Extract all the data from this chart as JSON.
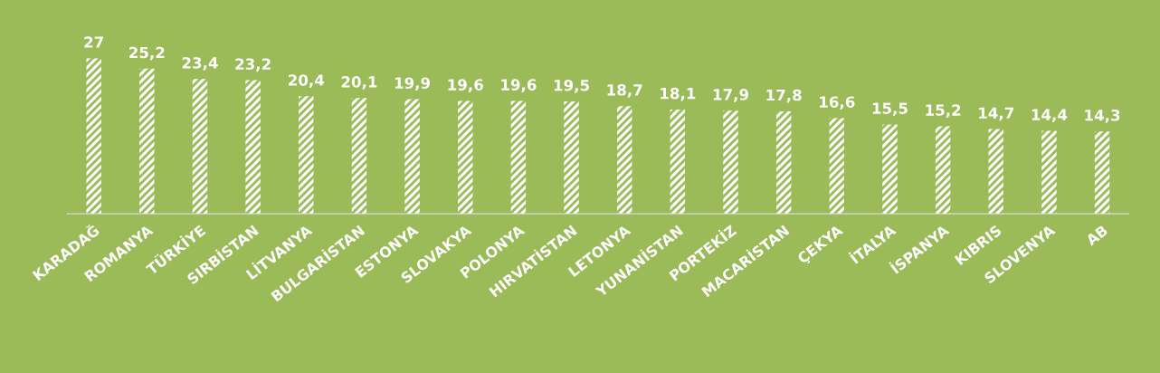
{
  "chart_data": {
    "type": "bar",
    "categories": [
      "KARADAĞ",
      "ROMANYA",
      "TÜRKİYE",
      "SIRBİSTAN",
      "LİTVANYA",
      "BULGARİSTAN",
      "ESTONYA",
      "SLOVAKYA",
      "POLONYA",
      "HIRVATİSTAN",
      "LETONYA",
      "YUNANİSTAN",
      "PORTEKİZ",
      "MACARİSTAN",
      "ÇEKYA",
      "İTALYA",
      "İSPANYA",
      "KIBRIS",
      "SLOVENYA",
      "AB"
    ],
    "values": [
      27,
      25.2,
      23.4,
      23.2,
      20.4,
      20.1,
      19.9,
      19.6,
      19.6,
      19.5,
      18.7,
      18.1,
      17.9,
      17.8,
      16.6,
      15.5,
      15.2,
      14.7,
      14.4,
      14.3
    ],
    "color": "#9bbb59",
    "value_labels": [
      "27",
      "25,2",
      "23,4",
      "23,2",
      "20,4",
      "20,1",
      "19,9",
      "19,6",
      "19,6",
      "19,5",
      "18,7",
      "18,1",
      "17,9",
      "17,8",
      "16,6",
      "15,5",
      "15,2",
      "14,7",
      "14,4",
      "14,3"
    ],
    "grid": false,
    "legend": false
  }
}
